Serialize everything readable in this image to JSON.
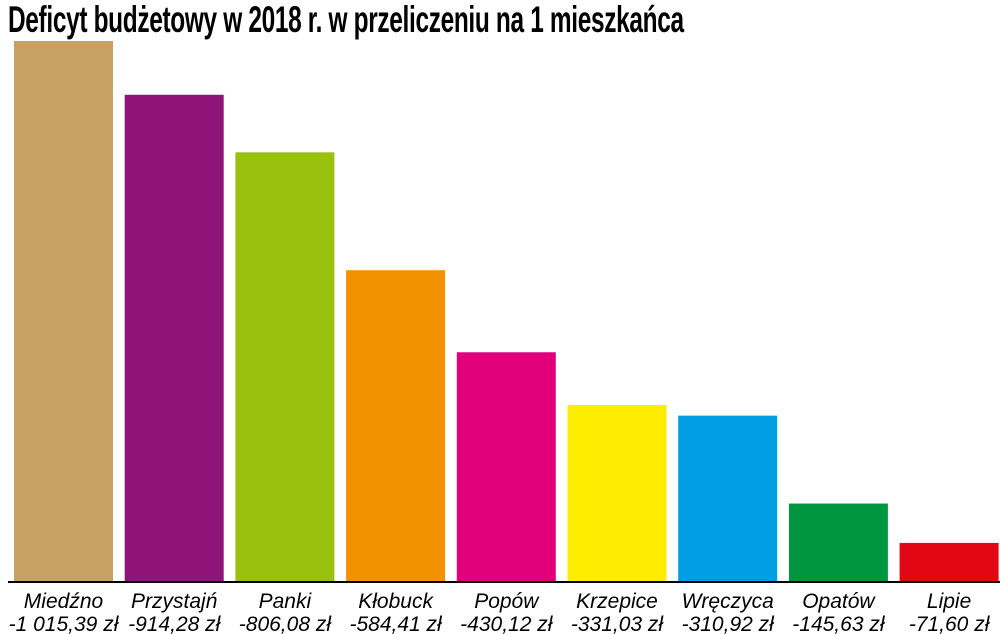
{
  "chart_data": {
    "type": "bar",
    "title": "Deficyt budżetowy w 2018 r. w przeliczeniu na 1 mieszkańca",
    "categories": [
      "Miedźno",
      "Przystajń",
      "Panki",
      "Kłobuck",
      "Popów",
      "Krzepice",
      "Wręczyca",
      "Opatów",
      "Lipie"
    ],
    "values": [
      -1015.39,
      -914.28,
      -806.08,
      -584.41,
      -430.12,
      -331.03,
      -310.92,
      -145.63,
      -71.6
    ],
    "value_labels": [
      "-1 015,39 zł",
      "-914,28 zł",
      "-806,08 zł",
      "-584,41 zł",
      "-430,12 zł",
      "-331,03 zł",
      "-310,92 zł",
      "-145,63 zł",
      "-71,60 zł"
    ],
    "colors": [
      "#c9a063",
      "#8e1479",
      "#9bc10f",
      "#f39200",
      "#e2007a",
      "#ffed00",
      "#009fe3",
      "#009640",
      "#e30613"
    ],
    "xlabel": "",
    "ylabel": "",
    "grid": false,
    "legend": "none"
  }
}
